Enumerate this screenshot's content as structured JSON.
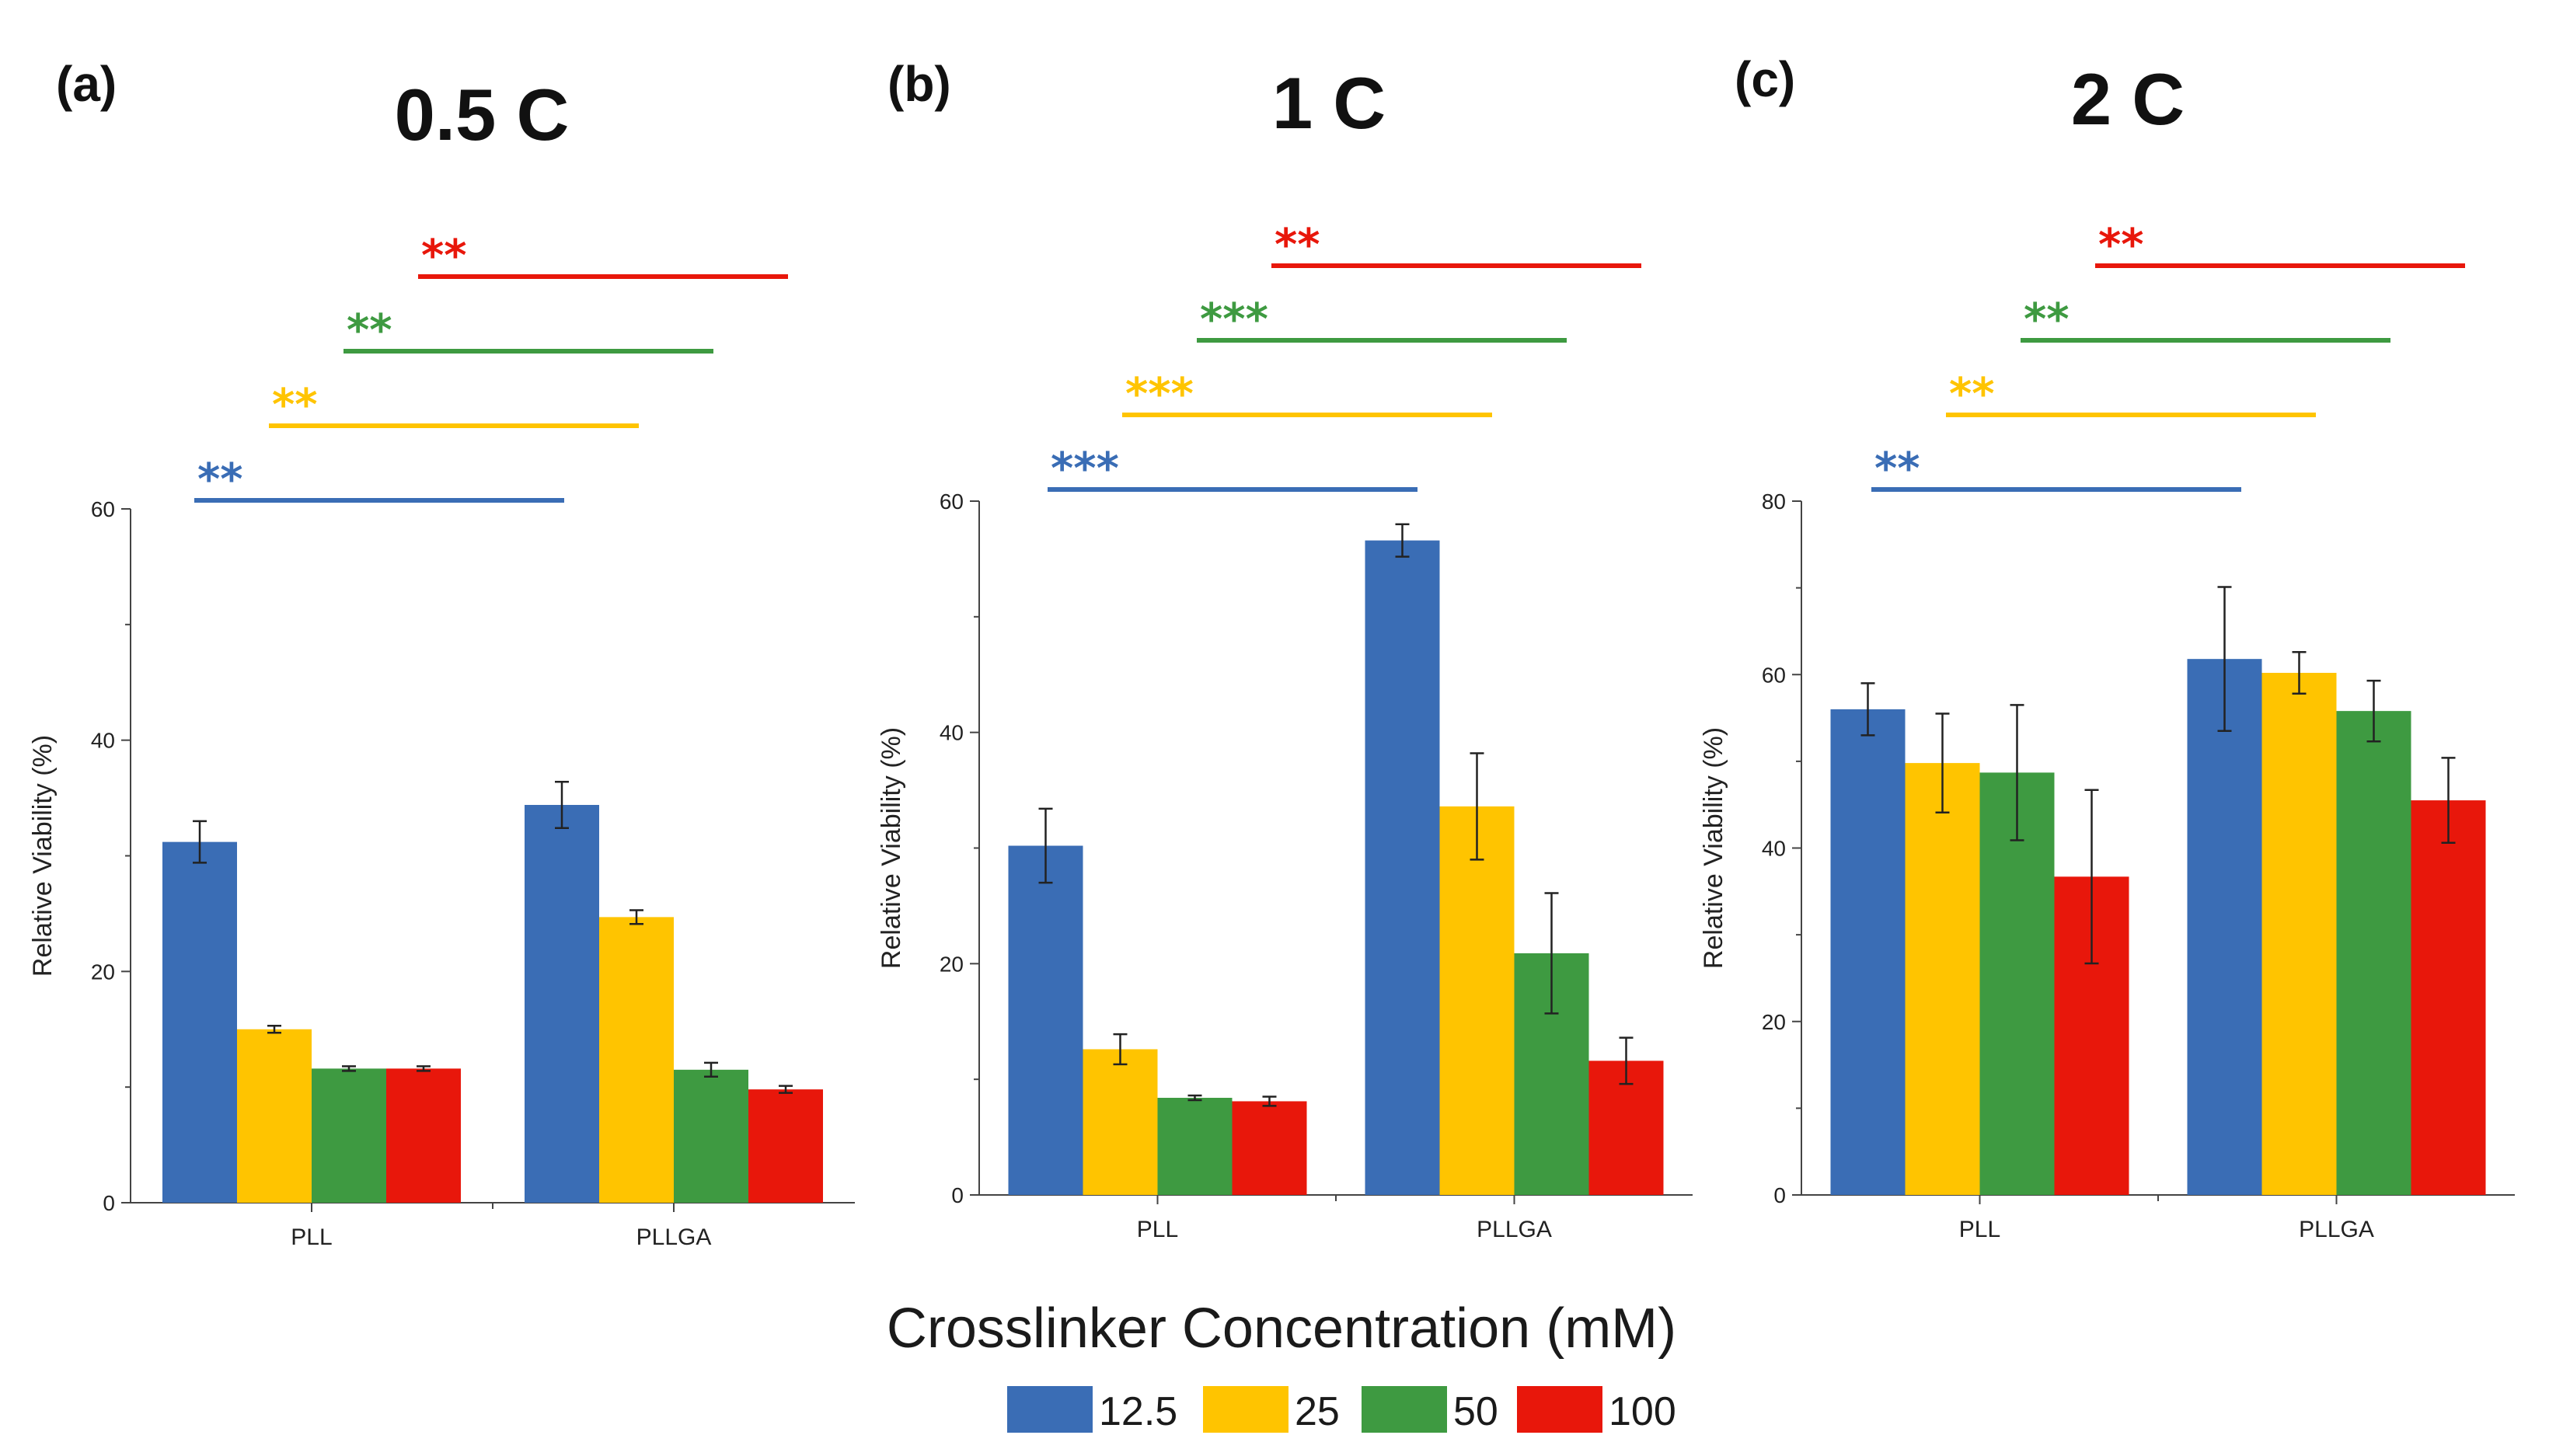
{
  "figure": {
    "shared_xlabel": "Crosslinker Concentration (mM)",
    "legend": [
      {
        "label": "12.5",
        "color": "#3a6db5"
      },
      {
        "label": "25",
        "color": "#ffc400"
      },
      {
        "label": "50",
        "color": "#3e9a41"
      },
      {
        "label": "100",
        "color": "#e8170b"
      }
    ]
  },
  "chart_data": [
    {
      "panel": "(a)",
      "type": "bar",
      "title": "0.5 C",
      "ylabel": "Relative Viability (%)",
      "ylim": [
        0,
        60
      ],
      "yticks": [
        0,
        20,
        40,
        60
      ],
      "categories": [
        "PLL",
        "PLLGA"
      ],
      "series": [
        {
          "name": "12.5",
          "color": "#3a6db5",
          "values": [
            31.2,
            34.4
          ],
          "errors": [
            1.8,
            2.0
          ]
        },
        {
          "name": "25",
          "color": "#ffc400",
          "values": [
            15.0,
            24.7
          ],
          "errors": [
            0.3,
            0.6
          ]
        },
        {
          "name": "50",
          "color": "#3e9a41",
          "values": [
            11.6,
            11.5
          ],
          "errors": [
            0.2,
            0.6
          ]
        },
        {
          "name": "100",
          "color": "#e8170b",
          "values": [
            11.6,
            9.8
          ],
          "errors": [
            0.2,
            0.3
          ]
        }
      ],
      "significance": [
        {
          "series": "12.5",
          "label": "**",
          "color": "#3a6db5"
        },
        {
          "series": "25",
          "label": "**",
          "color": "#ffc400"
        },
        {
          "series": "50",
          "label": "**",
          "color": "#3e9a41"
        },
        {
          "series": "100",
          "label": "**",
          "color": "#e8170b"
        }
      ]
    },
    {
      "panel": "(b)",
      "type": "bar",
      "title": "1 C",
      "ylabel": "Relative Viability (%)",
      "ylim": [
        0,
        60
      ],
      "yticks": [
        0,
        20,
        40,
        60
      ],
      "categories": [
        "PLL",
        "PLLGA"
      ],
      "series": [
        {
          "name": "12.5",
          "color": "#3a6db5",
          "values": [
            30.2,
            56.6
          ],
          "errors": [
            3.2,
            1.4
          ]
        },
        {
          "name": "25",
          "color": "#ffc400",
          "values": [
            12.6,
            33.6
          ],
          "errors": [
            1.3,
            4.6
          ]
        },
        {
          "name": "50",
          "color": "#3e9a41",
          "values": [
            8.4,
            20.9
          ],
          "errors": [
            0.2,
            5.2
          ]
        },
        {
          "name": "100",
          "color": "#e8170b",
          "values": [
            8.1,
            11.6
          ],
          "errors": [
            0.4,
            2.0
          ]
        }
      ],
      "significance": [
        {
          "series": "12.5",
          "label": "***",
          "color": "#3a6db5"
        },
        {
          "series": "25",
          "label": "***",
          "color": "#ffc400"
        },
        {
          "series": "50",
          "label": "***",
          "color": "#3e9a41"
        },
        {
          "series": "100",
          "label": "**",
          "color": "#e8170b"
        }
      ]
    },
    {
      "panel": "(c)",
      "type": "bar",
      "title": "2 C",
      "ylabel": "Relative Viability (%)",
      "ylim": [
        0,
        80
      ],
      "yticks": [
        0,
        20,
        40,
        60,
        80
      ],
      "categories": [
        "PLL",
        "PLLGA"
      ],
      "series": [
        {
          "name": "12.5",
          "color": "#3a6db5",
          "values": [
            56.0,
            61.8
          ],
          "errors": [
            3.0,
            8.3
          ]
        },
        {
          "name": "25",
          "color": "#ffc400",
          "values": [
            49.8,
            60.2
          ],
          "errors": [
            5.7,
            2.4
          ]
        },
        {
          "name": "50",
          "color": "#3e9a41",
          "values": [
            48.7,
            55.8
          ],
          "errors": [
            7.8,
            3.5
          ]
        },
        {
          "name": "100",
          "color": "#e8170b",
          "values": [
            36.7,
            45.5
          ],
          "errors": [
            10.0,
            4.9
          ]
        }
      ],
      "significance": [
        {
          "series": "12.5",
          "label": "**",
          "color": "#3a6db5"
        },
        {
          "series": "25",
          "label": "**",
          "color": "#ffc400"
        },
        {
          "series": "50",
          "label": "**",
          "color": "#3e9a41"
        },
        {
          "series": "100",
          "label": "**",
          "color": "#e8170b"
        }
      ]
    }
  ]
}
